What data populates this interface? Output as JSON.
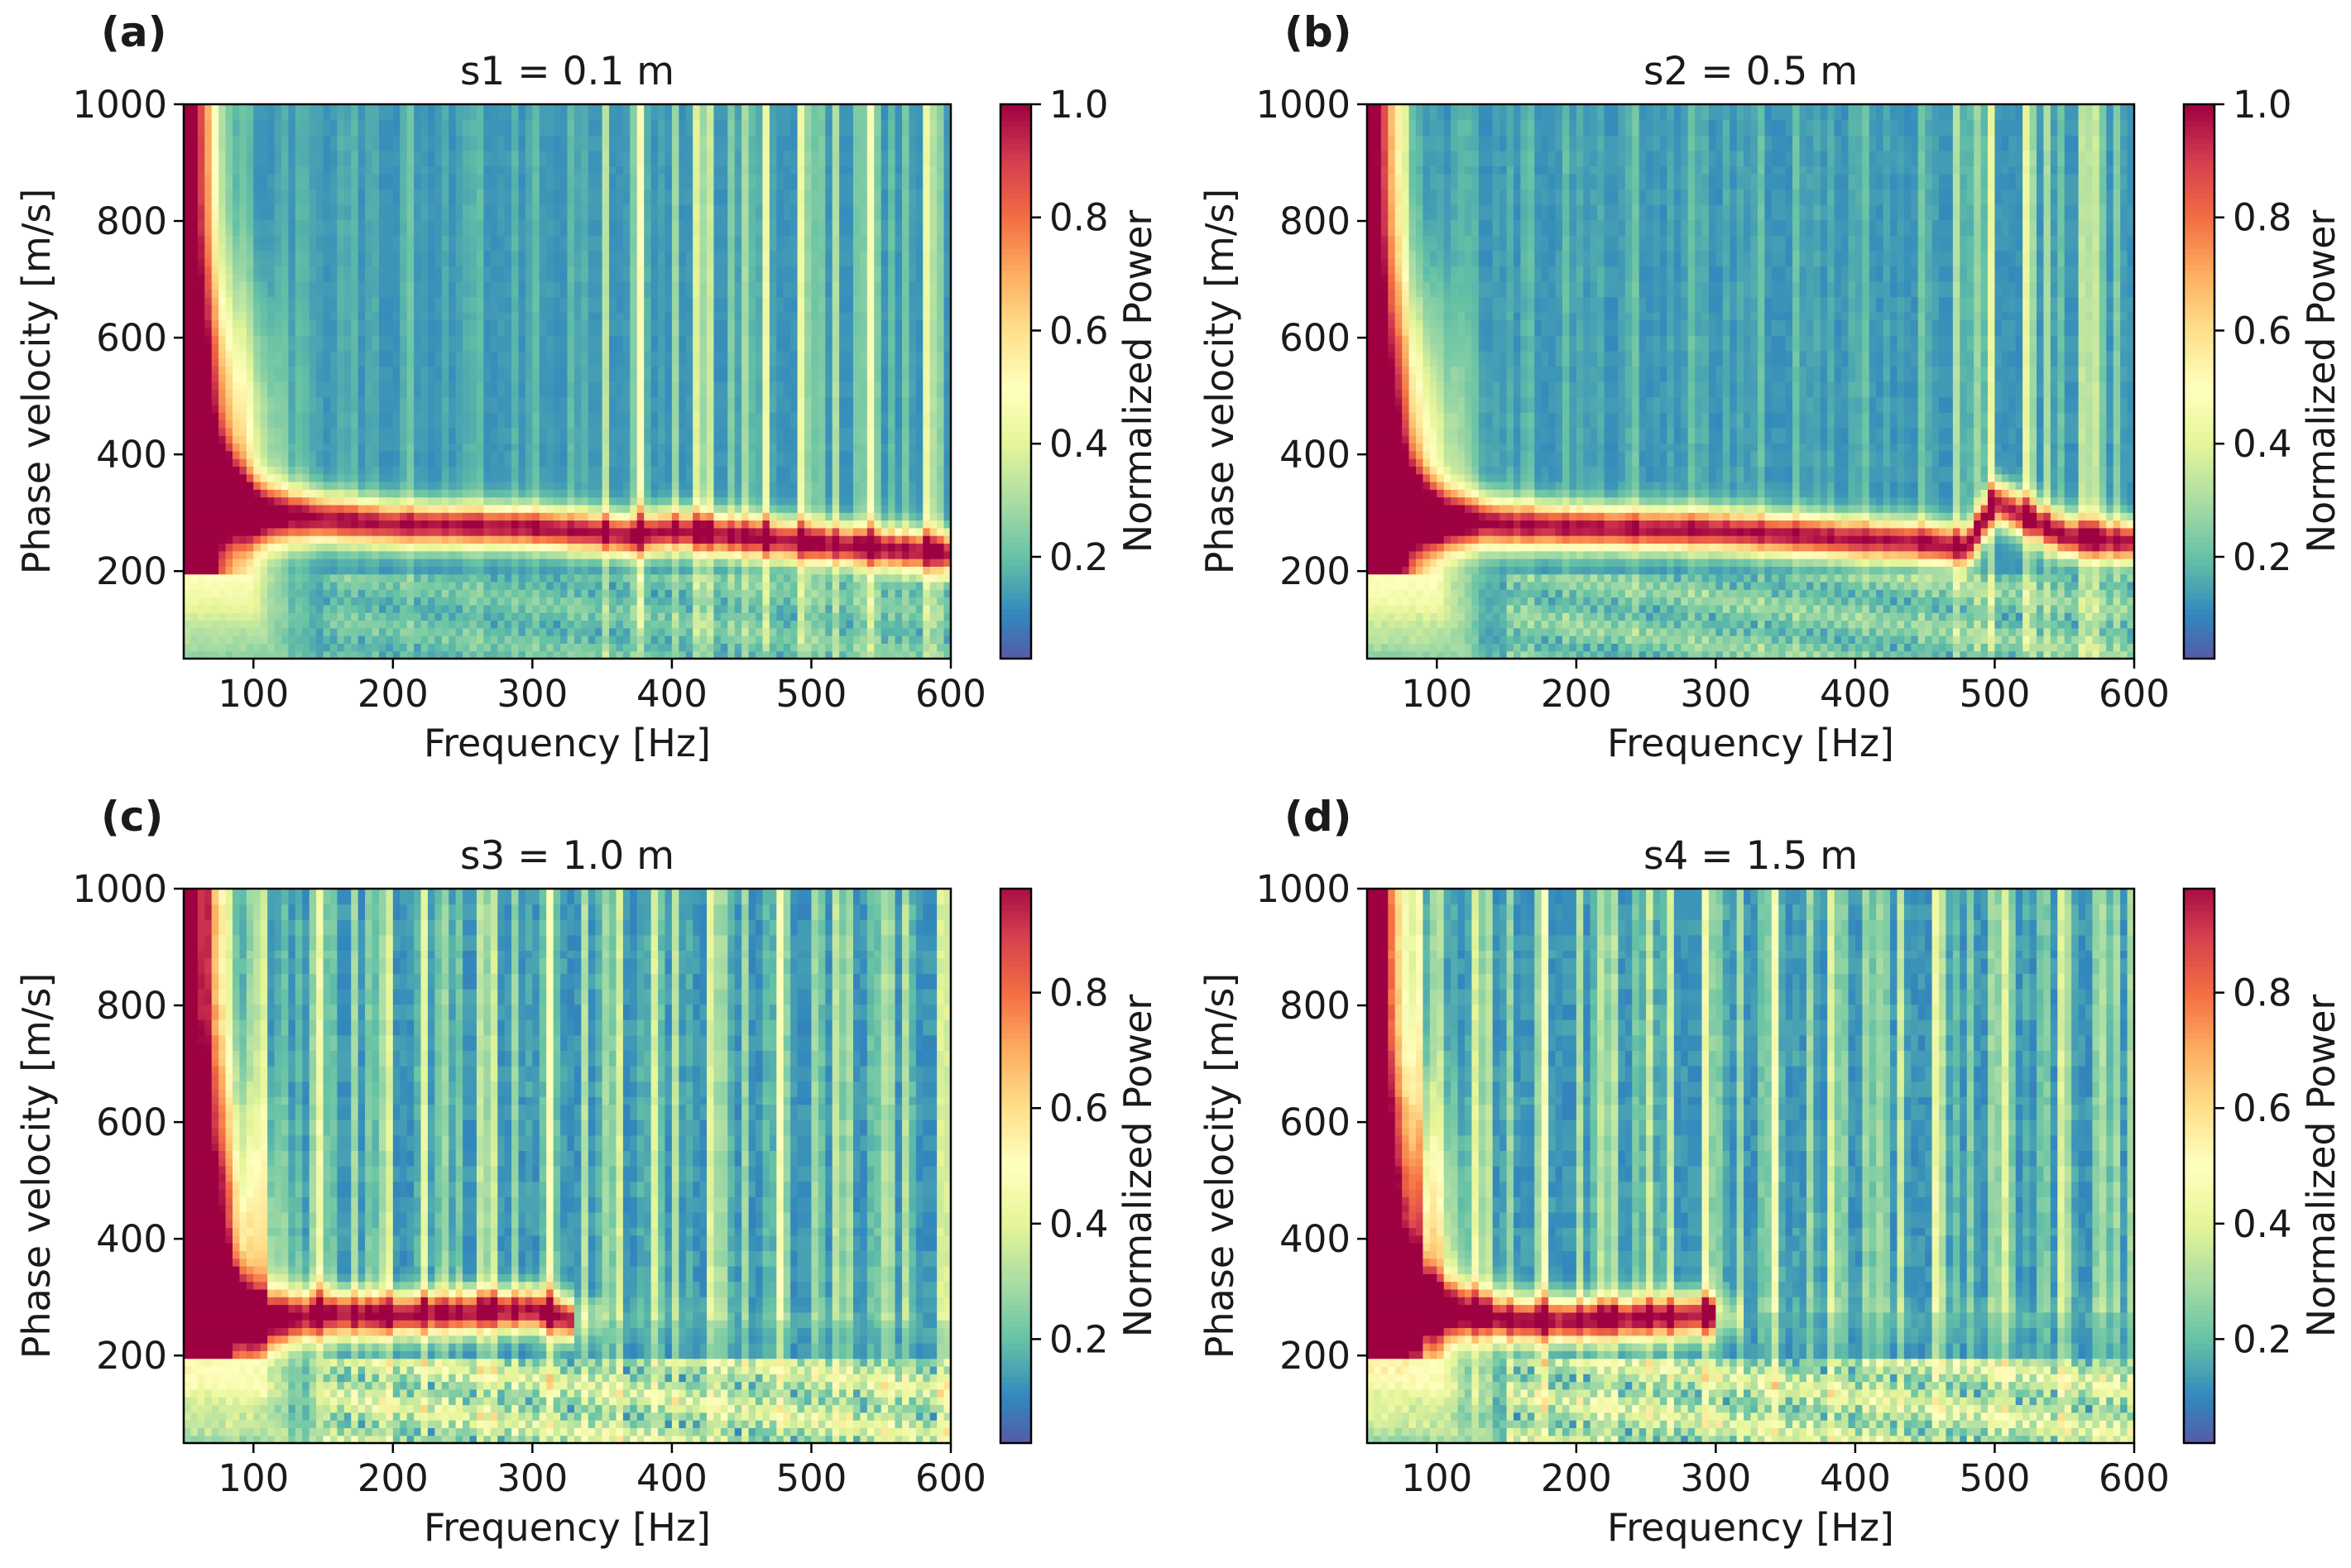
{
  "figure": {
    "panels": [
      {
        "label": "(a)",
        "title": "s1 = 0.1 m",
        "xlabel": "Frequency [Hz]",
        "ylabel": "Phase velocity [m/s]",
        "colorbar_label": "Normalized Power",
        "colorbar_ticks": [
          "0.2",
          "0.4",
          "0.6",
          "0.8",
          "1.0"
        ]
      },
      {
        "label": "(b)",
        "title": "s2 = 0.5 m",
        "xlabel": "Frequency [Hz]",
        "ylabel": "Phase velocity [m/s]",
        "colorbar_label": "Normalized Power",
        "colorbar_ticks": [
          "0.2",
          "0.4",
          "0.6",
          "0.8",
          "1.0"
        ]
      },
      {
        "label": "(c)",
        "title": "s3 = 1.0 m",
        "xlabel": "Frequency [Hz]",
        "ylabel": "Phase velocity [m/s]",
        "colorbar_label": "Normalized Power",
        "colorbar_ticks": [
          "0.2",
          "0.4",
          "0.6",
          "0.8"
        ]
      },
      {
        "label": "(d)",
        "title": "s4 = 1.5 m",
        "xlabel": "Frequency [Hz]",
        "ylabel": "Phase velocity [m/s]",
        "colorbar_label": "Normalized Power",
        "colorbar_ticks": [
          "0.2",
          "0.4",
          "0.6",
          "0.8"
        ]
      }
    ]
  },
  "chart_data": [
    {
      "type": "heatmap",
      "title": "s1 = 0.1 m",
      "xlabel": "Frequency [Hz]",
      "ylabel": "Phase velocity [m/s]",
      "xlim": [
        50,
        600
      ],
      "ylim": [
        50,
        1000
      ],
      "xticks": [
        100,
        200,
        300,
        400,
        500,
        600
      ],
      "yticks": [
        200,
        400,
        600,
        800,
        1000
      ],
      "colorbar": {
        "label": "Normalized Power",
        "range": [
          0.02,
          1.0
        ],
        "ticks": [
          0.2,
          0.4,
          0.6,
          0.8,
          1.0
        ],
        "colormap": "Spectral_r"
      },
      "dispersion_ridge": {
        "frequency": [
          60,
          80,
          100,
          150,
          200,
          300,
          355,
          370,
          400,
          450,
          495,
          520,
          600
        ],
        "phase_velocity": [
          350,
          330,
          300,
          290,
          280,
          275,
          265,
          260,
          270,
          260,
          250,
          245,
          230
        ]
      }
    },
    {
      "type": "heatmap",
      "title": "s2 = 0.5 m",
      "xlabel": "Frequency [Hz]",
      "ylabel": "Phase velocity [m/s]",
      "xlim": [
        50,
        600
      ],
      "ylim": [
        50,
        1000
      ],
      "xticks": [
        100,
        200,
        300,
        400,
        500,
        600
      ],
      "yticks": [
        200,
        400,
        600,
        800,
        1000
      ],
      "colorbar": {
        "label": "Normalized Power",
        "range": [
          0.02,
          1.0
        ],
        "ticks": [
          0.2,
          0.4,
          0.6,
          0.8,
          1.0
        ],
        "colormap": "Spectral_r"
      },
      "dispersion_ridge": {
        "frequency": [
          60,
          80,
          100,
          150,
          200,
          300,
          370,
          400,
          450,
          480,
          500,
          550,
          600
        ],
        "phase_velocity": [
          330,
          310,
          290,
          280,
          275,
          270,
          260,
          255,
          250,
          240,
          320,
          260,
          250
        ]
      }
    },
    {
      "type": "heatmap",
      "title": "s3 = 1.0 m",
      "xlabel": "Frequency [Hz]",
      "ylabel": "Phase velocity [m/s]",
      "xlim": [
        50,
        600
      ],
      "ylim": [
        50,
        1000
      ],
      "xticks": [
        100,
        200,
        300,
        400,
        500,
        600
      ],
      "yticks": [
        200,
        400,
        600,
        800,
        1000
      ],
      "colorbar": {
        "label": "Normalized Power",
        "range": [
          0.02,
          0.98
        ],
        "ticks": [
          0.2,
          0.4,
          0.6,
          0.8
        ],
        "colormap": "Spectral_r"
      },
      "dispersion_ridge": {
        "frequency": [
          60,
          80,
          100,
          150,
          200,
          250,
          300,
          330
        ],
        "phase_velocity": [
          320,
          300,
          260,
          270,
          270,
          275,
          280,
          260
        ]
      }
    },
    {
      "type": "heatmap",
      "title": "s4 = 1.5 m",
      "xlabel": "Frequency [Hz]",
      "ylabel": "Phase velocity [m/s]",
      "xlim": [
        50,
        600
      ],
      "ylim": [
        50,
        1000
      ],
      "xticks": [
        100,
        200,
        300,
        400,
        500,
        600
      ],
      "yticks": [
        200,
        400,
        600,
        800,
        1000
      ],
      "colorbar": {
        "label": "Normalized Power",
        "range": [
          0.02,
          0.98
        ],
        "ticks": [
          0.2,
          0.4,
          0.6,
          0.8
        ],
        "colormap": "Spectral_r"
      },
      "dispersion_ridge": {
        "frequency": [
          60,
          80,
          100,
          130,
          160,
          200,
          250,
          300
        ],
        "phase_velocity": [
          330,
          300,
          280,
          270,
          260,
          260,
          265,
          270
        ]
      }
    }
  ]
}
